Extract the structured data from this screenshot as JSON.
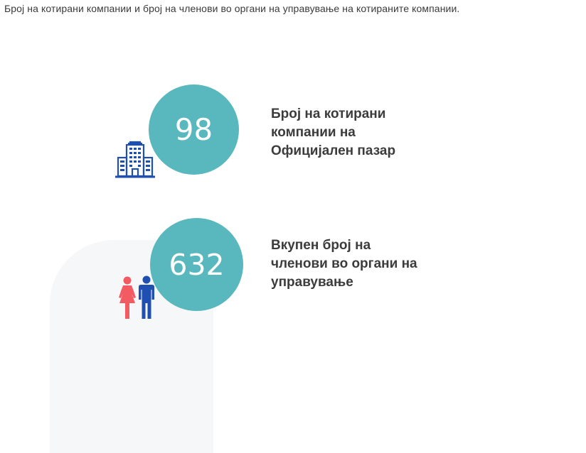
{
  "page": {
    "title": "Број на котирани компании и број на членови во органи на управување на котираните компании."
  },
  "stats": [
    {
      "value": "98",
      "label_lines": [
        "Број на котирани",
        "компании на",
        "Официјален пазар"
      ],
      "icon": "building-icon",
      "icon_color": "#1f4fb0"
    },
    {
      "value": "632",
      "label_lines": [
        "Вкупен број на",
        "членови во органи на",
        "управување"
      ],
      "icon": "people-icon",
      "icon_colors": {
        "woman": "#f25b62",
        "man": "#1f4fb0"
      }
    }
  ],
  "colors": {
    "circle": "#58b8bd",
    "text": "#3c3c3c"
  }
}
